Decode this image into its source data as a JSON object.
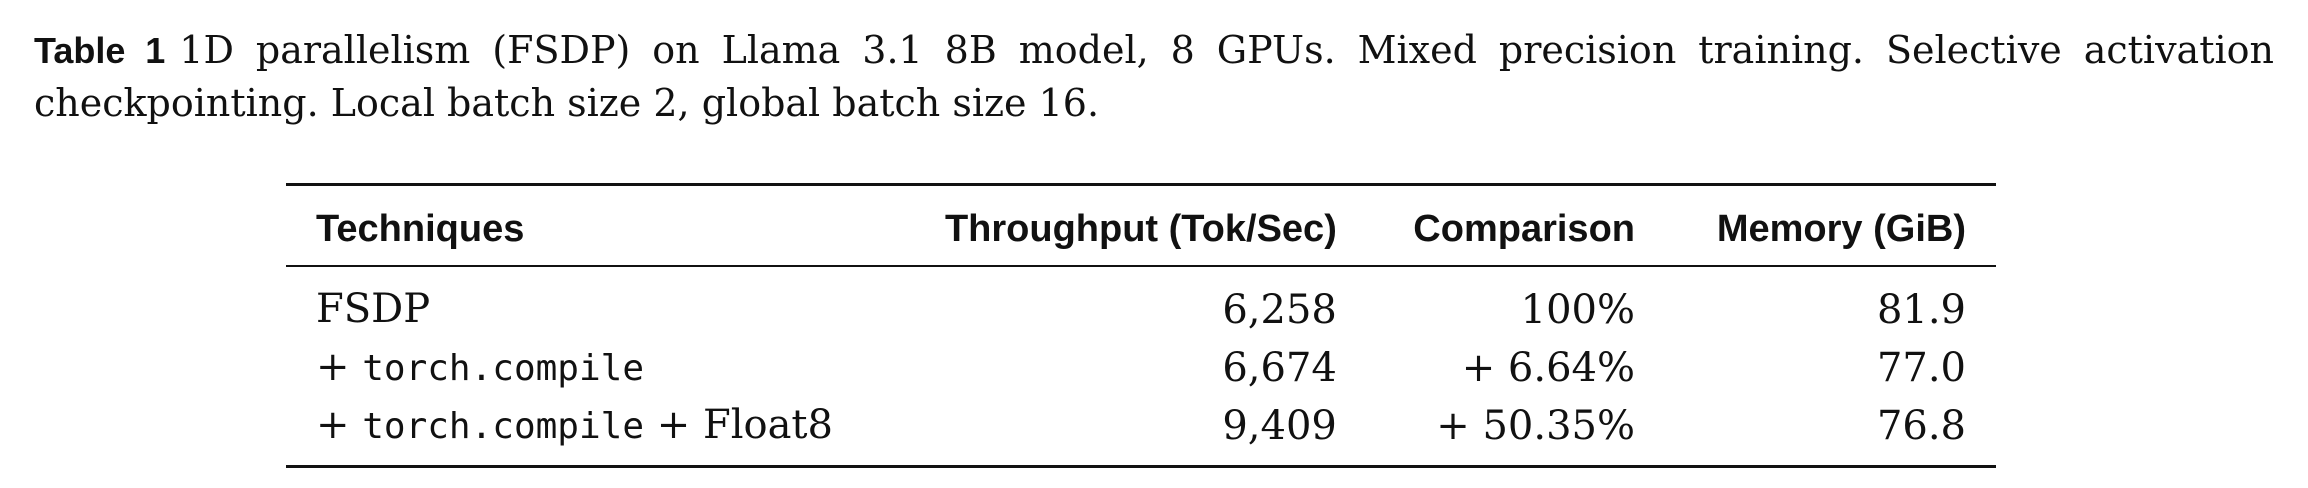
{
  "caption": {
    "label": "Table 1",
    "text": "1D parallelism (FSDP) on Llama 3.1 8B model, 8 GPUs. Mixed precision training. Selective activation checkpointing. Local batch size 2, global batch size 16."
  },
  "table": {
    "headers": [
      "Techniques",
      "Throughput (Tok/Sec)",
      "Comparison",
      "Memory (GiB)"
    ],
    "rows": [
      {
        "technique_prefix": "FSDP",
        "technique_code": "",
        "technique_suffix": "",
        "throughput": "6,258",
        "comparison": "100%",
        "memory": "81.9"
      },
      {
        "technique_prefix": "+ ",
        "technique_code": "torch.compile",
        "technique_suffix": "",
        "throughput": "6,674",
        "comparison": "+ 6.64%",
        "memory": "77.0"
      },
      {
        "technique_prefix": "+ ",
        "technique_code": "torch.compile",
        "technique_suffix": " + Float8",
        "throughput": "9,409",
        "comparison": "+ 50.35%",
        "memory": "76.8"
      }
    ]
  }
}
